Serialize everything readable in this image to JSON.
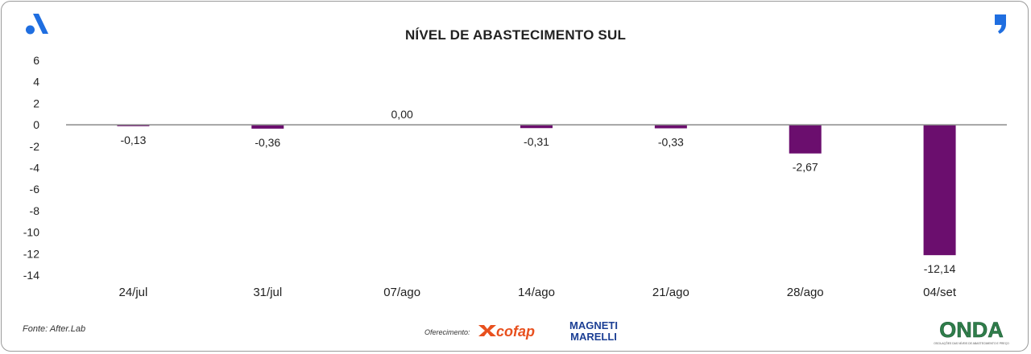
{
  "header": {
    "title": "NÍVEL DE ABASTECIMENTO SUL",
    "brand_icon": "letter-a-logo-icon",
    "quote_icon": "quote-mark-logo-icon"
  },
  "footer": {
    "source": "Fonte: After.Lab",
    "sponsor_label": "Oferecimento:",
    "sponsors": [
      "cofap",
      "MAGNETI MARELLI"
    ],
    "org_logo": "ONDA",
    "org_tagline": "OSCILAÇÕES DAS NÍVEIS DE ABASTECIMENTO E PREÇO"
  },
  "colors": {
    "bar": "#6b0e6e",
    "axis": "#8a8a8a",
    "brand_blue": "#1f6ee0",
    "cofap_orange": "#e8501e",
    "magneti_blue": "#1c3f94",
    "onda_green": "#2f7d4a"
  },
  "chart_data": {
    "type": "bar",
    "title": "NÍVEL DE ABASTECIMENTO SUL",
    "xlabel": "",
    "ylabel": "",
    "categories": [
      "24/jul",
      "31/jul",
      "07/ago",
      "14/ago",
      "21/ago",
      "28/ago",
      "04/set"
    ],
    "values": [
      -0.13,
      -0.36,
      0.0,
      -0.31,
      -0.33,
      -2.67,
      -12.14
    ],
    "data_labels": [
      "-0,13",
      "-0,36",
      "0,00",
      "-0,31",
      "-0,33",
      "-2,67",
      "-12,14"
    ],
    "ylim": [
      -14,
      6
    ],
    "yticks": [
      6,
      4,
      2,
      0,
      -2,
      -4,
      -6,
      -8,
      -10,
      -12,
      -14
    ],
    "ytick_labels": [
      "6",
      "4",
      "2",
      "0",
      "-2",
      "-4",
      "-6",
      "-8",
      "-10",
      "-12",
      "-14"
    ],
    "grid": false,
    "legend": "none"
  }
}
